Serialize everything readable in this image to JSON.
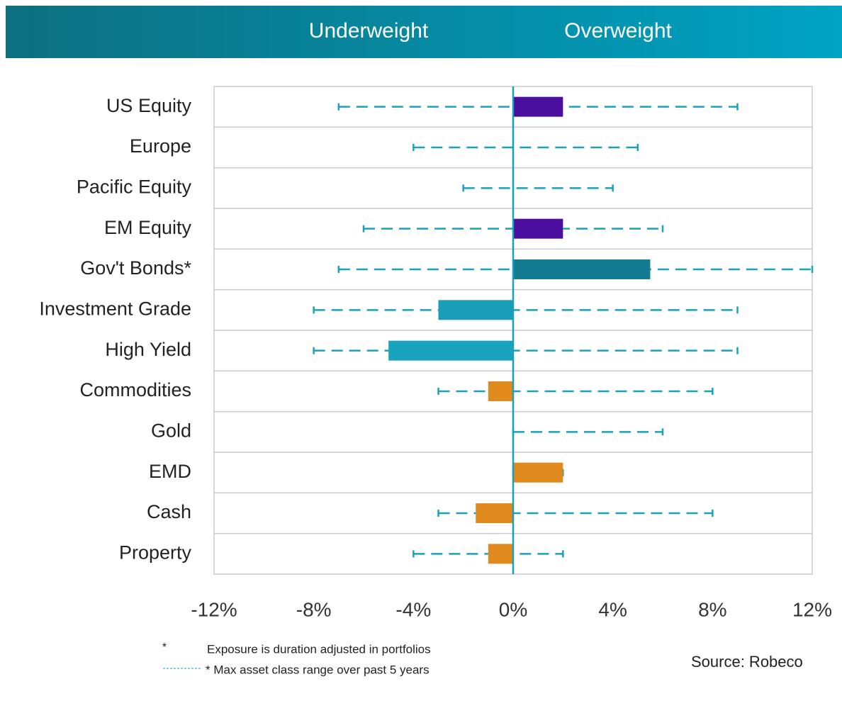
{
  "chart_data": {
    "type": "range_bar",
    "header": [
      "Underweight",
      "Overweight"
    ],
    "categories": [
      "US Equity",
      "Europe",
      "Pacific Equity",
      "EM Equity",
      "Gov't Bonds*",
      "Investment Grade",
      "High Yield",
      "Commodities",
      "Gold",
      "EMD",
      "Cash",
      "Property"
    ],
    "values": [
      2,
      0,
      0,
      2,
      5.5,
      -3,
      -5,
      -1,
      0,
      2,
      -1.5,
      -1
    ],
    "min": [
      -7,
      -4,
      -2,
      -6,
      -7,
      -8,
      -8,
      -3,
      0,
      0,
      -3,
      -4
    ],
    "max": [
      9,
      5,
      4,
      6,
      12,
      9,
      9,
      8,
      6,
      2,
      8,
      2
    ],
    "colors": [
      "#4a0f9e",
      "#4a0f9e",
      "#4a0f9e",
      "#4a0f9e",
      "#137c92",
      "#1a9db6",
      "#1aa3bc",
      "#e08a1e",
      "#e08a1e",
      "#e08a1e",
      "#e08a1e",
      "#e08a1e"
    ],
    "range_color": "#1ba2b8",
    "xlim": [
      -12,
      12
    ],
    "xticks": [
      {
        "value": -12,
        "label": "-12%"
      },
      {
        "value": -8,
        "label": "-8%"
      },
      {
        "value": -4,
        "label": "-4%"
      },
      {
        "value": 0,
        "label": "0%"
      },
      {
        "value": 4,
        "label": "4%"
      },
      {
        "value": 8,
        "label": "8%"
      },
      {
        "value": 12,
        "label": "12%"
      }
    ],
    "footnotes": [
      "*",
      "Exposure is duration adjusted in portfolios",
      "* Max asset class range over past 5 years"
    ],
    "source": "Source: Robeco"
  }
}
